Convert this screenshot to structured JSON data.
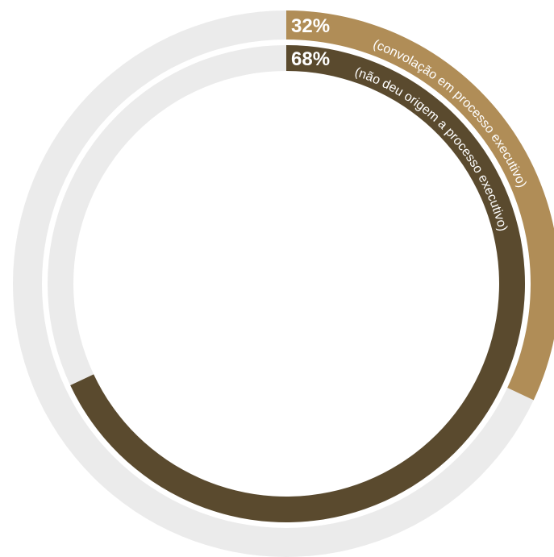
{
  "chart_data": {
    "type": "pie",
    "style": "concentric-rings",
    "rings": [
      {
        "ring": "outer",
        "value": 32,
        "value_label": "32%",
        "caption": "(convolação em processo executivo)",
        "color": "#B08D57",
        "track_color": "#EBEBEB"
      },
      {
        "ring": "inner",
        "value": 68,
        "value_label": "68%",
        "caption": "(não deu origem a processo executivo)",
        "color": "#5A4A2E",
        "track_color": "#EBEBEB"
      }
    ]
  }
}
